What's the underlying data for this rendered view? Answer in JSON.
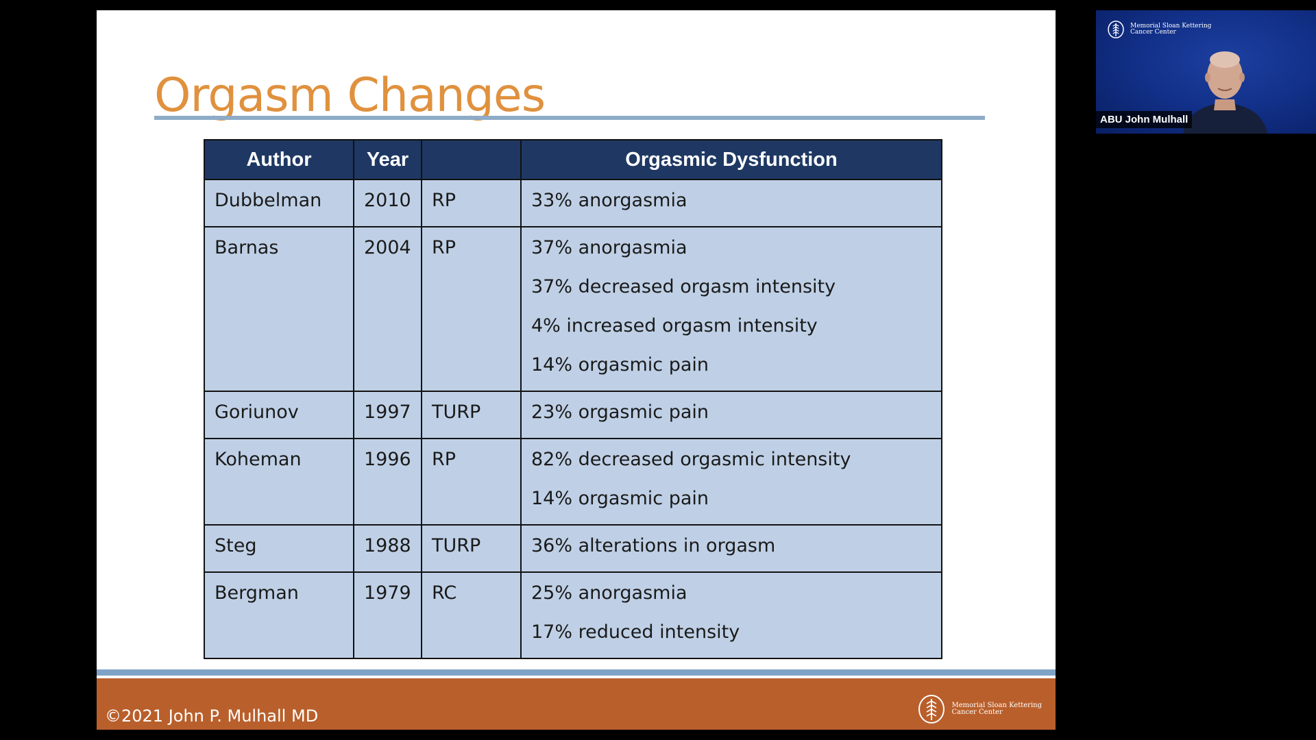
{
  "slide": {
    "title": "Orgasm Changes",
    "table": {
      "headers": [
        "Author",
        "Year",
        "",
        "Orgasmic Dysfunction"
      ],
      "rows": [
        {
          "author": "Dubbelman",
          "year": "2010",
          "procedure": "RP",
          "findings": [
            "33% anorgasmia"
          ]
        },
        {
          "author": "Barnas",
          "year": "2004",
          "procedure": "RP",
          "findings": [
            "37% anorgasmia",
            "37% decreased orgasm intensity",
            "4% increased orgasm intensity",
            "14% orgasmic pain"
          ]
        },
        {
          "author": "Goriunov",
          "year": "1997",
          "procedure": "TURP",
          "findings": [
            "23% orgasmic pain"
          ]
        },
        {
          "author": "Koheman",
          "year": "1996",
          "procedure": "RP",
          "findings": [
            "82% decreased orgasmic intensity",
            "14% orgasmic pain"
          ]
        },
        {
          "author": "Steg",
          "year": "1988",
          "procedure": "TURP",
          "findings": [
            "36% alterations in orgasm"
          ]
        },
        {
          "author": "Bergman",
          "year": "1979",
          "procedure": "RC",
          "findings": [
            "25% anorgasmia",
            "17% reduced intensity"
          ]
        }
      ]
    },
    "footer": {
      "copyright": "©2021 John P. Mulhall MD",
      "logo_line1": "Memorial Sloan Kettering",
      "logo_line2": "Cancer Center"
    }
  },
  "video": {
    "participant_name": "ABU John Mulhall",
    "logo_line1": "Memorial Sloan Kettering",
    "logo_line2": "Cancer Center"
  },
  "colors": {
    "title": "#e0913e",
    "header_bg": "#1f3863",
    "cell_bg": "#bfd0e6",
    "footer_bg": "#b95f2b",
    "footer_band": "#7fa3c6",
    "video_bg": "#12318a"
  },
  "icons": [
    "msk-logo-icon",
    "presenter-avatar"
  ]
}
